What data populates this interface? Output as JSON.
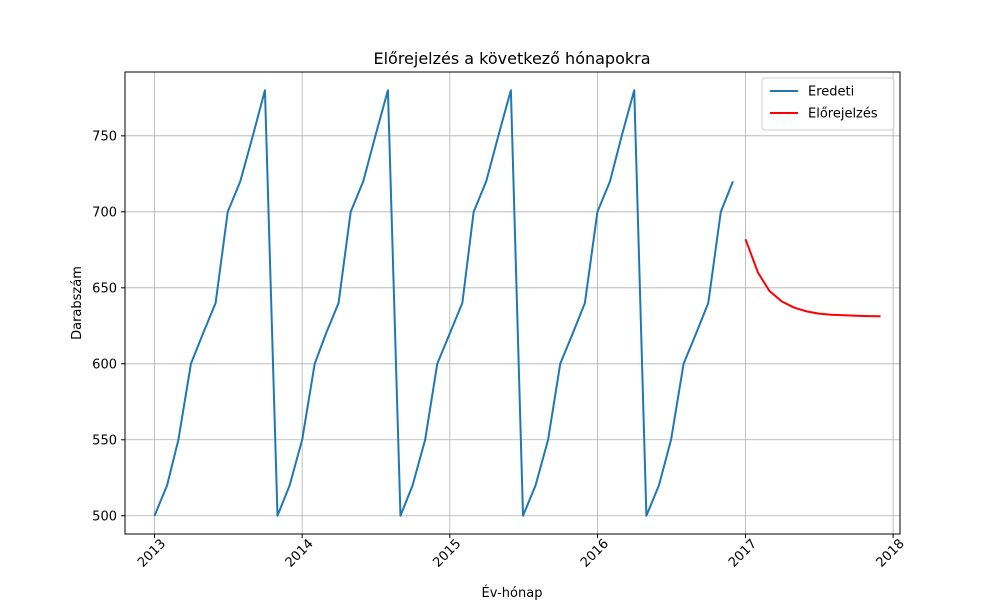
{
  "chart_data": {
    "type": "line",
    "title": "Előrejelzés a következő hónapokra",
    "xlabel": "Év-hónap",
    "ylabel": "Darabszám",
    "xlim": [
      "2012-10-20",
      "2018-01-18"
    ],
    "ylim": [
      488,
      792
    ],
    "x_ticks": [
      "2013",
      "2014",
      "2015",
      "2016",
      "2017",
      "2018"
    ],
    "y_ticks": [
      500,
      550,
      600,
      650,
      700,
      750
    ],
    "grid": true,
    "legend_position": "top-right",
    "series": [
      {
        "name": "Eredeti",
        "color": "#1f77b4",
        "x": [
          "2013-01-01",
          "2013-02-01",
          "2013-03-01",
          "2013-04-01",
          "2013-05-01",
          "2013-06-01",
          "2013-07-01",
          "2013-08-01",
          "2013-09-01",
          "2013-10-01",
          "2013-11-01",
          "2013-12-01",
          "2014-01-01",
          "2014-02-01",
          "2014-03-01",
          "2014-04-01",
          "2014-05-01",
          "2014-06-01",
          "2014-07-01",
          "2014-08-01",
          "2014-09-01",
          "2014-10-01",
          "2014-11-01",
          "2014-12-01",
          "2015-01-01",
          "2015-02-01",
          "2015-03-01",
          "2015-04-01",
          "2015-05-01",
          "2015-06-01",
          "2015-07-01",
          "2015-08-01",
          "2015-09-01",
          "2015-10-01",
          "2015-11-01",
          "2015-12-01",
          "2016-01-01",
          "2016-02-01",
          "2016-03-01",
          "2016-04-01",
          "2016-05-01",
          "2016-06-01",
          "2016-07-01",
          "2016-08-01",
          "2016-09-01",
          "2016-10-01",
          "2016-11-01",
          "2016-12-01"
        ],
        "y": [
          500,
          520,
          550,
          600,
          620,
          640,
          700,
          720,
          750,
          780,
          500,
          520,
          550,
          600,
          620,
          640,
          700,
          720,
          750,
          780,
          500,
          520,
          550,
          600,
          620,
          640,
          700,
          720,
          750,
          780,
          500,
          520,
          550,
          600,
          620,
          640,
          700,
          720,
          750,
          780,
          500,
          520,
          550,
          600,
          620,
          640,
          700,
          720
        ]
      },
      {
        "name": "Előrejelzés",
        "color": "#ff0000",
        "x": [
          "2017-01-01",
          "2017-02-01",
          "2017-03-01",
          "2017-04-01",
          "2017-05-01",
          "2017-06-01",
          "2017-07-01",
          "2017-08-01",
          "2017-09-01",
          "2017-10-01",
          "2017-11-01",
          "2017-12-01"
        ],
        "y": [
          682,
          660,
          648,
          641,
          637,
          634.5,
          633,
          632.3,
          631.9,
          631.6,
          631.4,
          631.3
        ]
      }
    ]
  }
}
